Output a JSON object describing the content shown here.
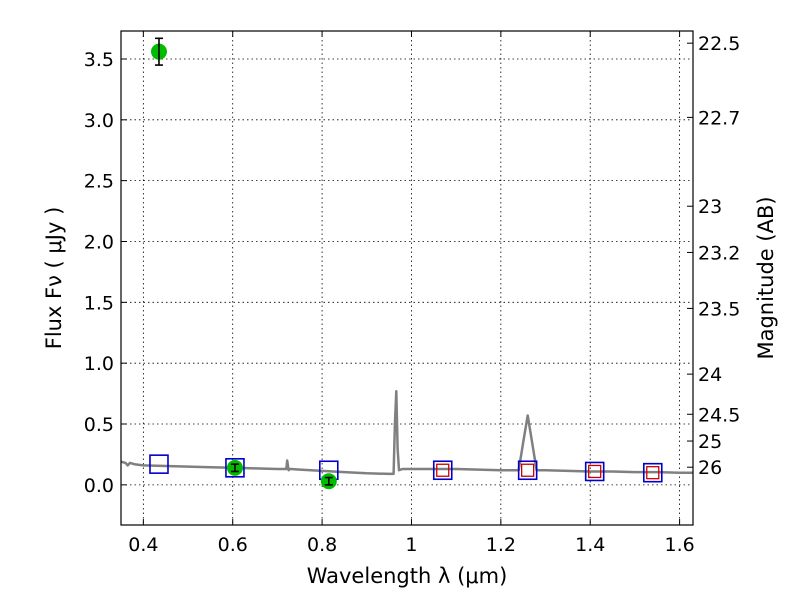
{
  "chart_data": {
    "type": "scatter",
    "title": "",
    "xlabel": "Wavelength  λ (μm)",
    "ylabel": "Flux  Fν  ( μJy )",
    "ylabel_right": "Magnitude (AB)",
    "xlim": [
      0.35,
      1.63
    ],
    "ylim": [
      -0.33,
      3.73
    ],
    "grid": true,
    "x_ticks": [
      0.4,
      0.6,
      0.8,
      1.0,
      1.2,
      1.4,
      1.6
    ],
    "x_tick_labels": [
      "0.4",
      "0.6",
      "0.8",
      "1",
      "1.2",
      "1.4",
      "1.6"
    ],
    "y_ticks": [
      0.0,
      0.5,
      1.0,
      1.5,
      2.0,
      2.5,
      3.0,
      3.5
    ],
    "y_tick_labels": [
      "0.0",
      "0.5",
      "1.0",
      "1.5",
      "2.0",
      "2.5",
      "3.0",
      "3.5"
    ],
    "right_ticks": [
      {
        "label": "22.5",
        "flux": 3.63
      },
      {
        "label": "22.7",
        "flux": 3.02
      },
      {
        "label": "23",
        "flux": 2.29
      },
      {
        "label": "23.2",
        "flux": 1.91
      },
      {
        "label": "23.5",
        "flux": 1.45
      },
      {
        "label": "24",
        "flux": 0.91
      },
      {
        "label": "24.5",
        "flux": 0.58
      },
      {
        "label": "25",
        "flux": 0.36
      },
      {
        "label": "26",
        "flux": 0.145
      }
    ],
    "colors": {
      "spectrum": "#808080",
      "observed": "#00bb00",
      "model_box": "#0000cc",
      "model_box_inner": "#cc0000"
    },
    "series": [
      {
        "kind": "spectrum",
        "x": [
          0.35,
          0.36,
          0.365,
          0.37,
          0.38,
          0.4,
          0.45,
          0.5,
          0.55,
          0.6,
          0.65,
          0.7,
          0.72,
          0.722,
          0.725,
          0.728,
          0.73,
          0.75,
          0.8,
          0.85,
          0.9,
          0.95,
          0.96,
          0.963,
          0.966,
          0.969,
          0.972,
          0.98,
          1.0,
          1.05,
          1.1,
          1.15,
          1.2,
          1.24,
          1.25,
          1.26,
          1.27,
          1.28,
          1.3,
          1.35,
          1.4,
          1.45,
          1.5,
          1.55,
          1.6,
          1.63
        ],
        "y": [
          0.19,
          0.18,
          0.16,
          0.18,
          0.17,
          0.16,
          0.155,
          0.15,
          0.145,
          0.14,
          0.135,
          0.13,
          0.13,
          0.2,
          0.12,
          0.13,
          0.13,
          0.125,
          0.115,
          0.105,
          0.095,
          0.09,
          0.09,
          0.5,
          0.77,
          0.3,
          0.12,
          0.13,
          0.13,
          0.13,
          0.13,
          0.125,
          0.12,
          0.12,
          0.35,
          0.57,
          0.35,
          0.12,
          0.12,
          0.115,
          0.11,
          0.11,
          0.105,
          0.105,
          0.1,
          0.1
        ]
      },
      {
        "kind": "observed",
        "x": [
          0.435,
          0.605,
          0.815
        ],
        "y": [
          3.56,
          0.14,
          0.03
        ],
        "yerr": [
          0.11,
          0.03,
          0.03
        ]
      },
      {
        "kind": "model",
        "x": [
          0.435,
          0.605,
          0.815,
          1.07,
          1.26,
          1.41,
          1.54
        ],
        "y": [
          0.17,
          0.14,
          0.12,
          0.12,
          0.12,
          0.11,
          0.1
        ],
        "inner": [
          false,
          false,
          false,
          true,
          true,
          true,
          true
        ]
      }
    ]
  }
}
